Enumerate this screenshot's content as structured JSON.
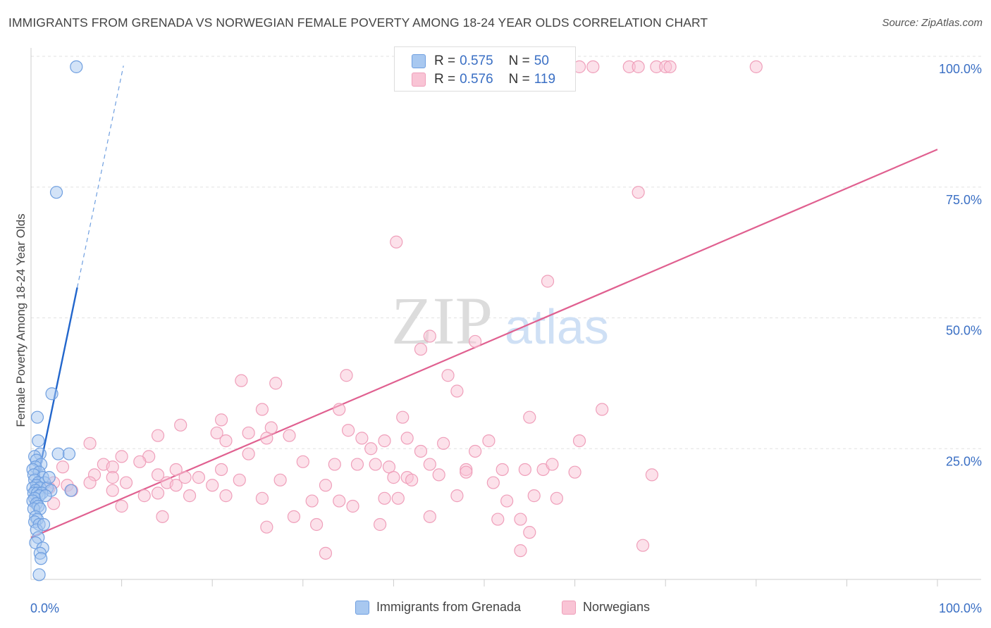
{
  "header": {
    "title": "IMMIGRANTS FROM GRENADA VS NORWEGIAN FEMALE POVERTY AMONG 18-24 YEAR OLDS CORRELATION CHART",
    "source": "Source: ZipAtlas.com"
  },
  "watermark": {
    "zip": "ZIP",
    "atlas": "atlas"
  },
  "stats_legend": {
    "rows": [
      {
        "r_label": "R =",
        "r_value": "0.575",
        "n_label": "N =",
        "n_value": "50",
        "color": "#6f9fe0"
      },
      {
        "r_label": "R =",
        "r_value": "0.576",
        "n_label": "N =",
        "n_value": "119",
        "color": "#f0a0bc"
      }
    ]
  },
  "colors": {
    "series_a_fill": "#a8c8f0",
    "series_a_stroke": "#6f9fe0",
    "series_a_line": "#2266cc",
    "series_b_fill": "#f9c4d5",
    "series_b_stroke": "#ef9fba",
    "series_b_line": "#e06090",
    "tick_label": "#3a6fc4"
  },
  "chart_data": {
    "type": "scatter",
    "title": "IMMIGRANTS FROM GRENADA VS NORWEGIAN FEMALE POVERTY AMONG 18-24 YEAR OLDS CORRELATION CHART",
    "xlabel": "",
    "ylabel": "Female Poverty Among 18-24 Year Olds",
    "xlim": [
      0,
      100
    ],
    "ylim": [
      0,
      100
    ],
    "x_tick_labels": [
      "0.0%",
      "100.0%"
    ],
    "y_ticks": [
      25,
      50,
      75,
      100
    ],
    "y_tick_labels": [
      "25.0%",
      "50.0%",
      "75.0%",
      "100.0%"
    ],
    "grid": true,
    "legend_placement": "bottom",
    "series": [
      {
        "name": "Immigrants from Grenada",
        "color": "#6f9fe0",
        "r": "0.575",
        "n": "50",
        "trend": {
          "x": [
            0.1,
            5.1
          ],
          "y": [
            14.0,
            55.8
          ],
          "dashed_to": [
            10.2,
            98.2
          ]
        },
        "points": [
          [
            5.0,
            98.0
          ],
          [
            2.8,
            74.0
          ],
          [
            2.3,
            35.5
          ],
          [
            0.7,
            31.0
          ],
          [
            0.8,
            26.5
          ],
          [
            1.0,
            24.0
          ],
          [
            0.4,
            23.5
          ],
          [
            0.6,
            22.8
          ],
          [
            1.1,
            22.0
          ],
          [
            0.5,
            21.5
          ],
          [
            0.2,
            21.0
          ],
          [
            0.9,
            20.5
          ],
          [
            0.3,
            20.0
          ],
          [
            1.3,
            19.5
          ],
          [
            0.4,
            19.0
          ],
          [
            0.8,
            18.5
          ],
          [
            1.5,
            18.5
          ],
          [
            0.6,
            18.0
          ],
          [
            0.2,
            17.5
          ],
          [
            1.0,
            17.5
          ],
          [
            0.5,
            17.0
          ],
          [
            1.8,
            17.5
          ],
          [
            2.2,
            17.0
          ],
          [
            0.3,
            16.5
          ],
          [
            0.7,
            16.5
          ],
          [
            1.2,
            16.5
          ],
          [
            0.9,
            16.0
          ],
          [
            0.4,
            15.5
          ],
          [
            1.6,
            16.0
          ],
          [
            0.2,
            15.0
          ],
          [
            0.6,
            14.5
          ],
          [
            0.8,
            14.0
          ],
          [
            0.3,
            13.5
          ],
          [
            1.0,
            13.5
          ],
          [
            0.5,
            12.0
          ],
          [
            0.7,
            11.5
          ],
          [
            0.4,
            11.0
          ],
          [
            0.9,
            10.5
          ],
          [
            0.6,
            9.5
          ],
          [
            1.4,
            10.5
          ],
          [
            0.8,
            8.0
          ],
          [
            0.5,
            7.0
          ],
          [
            1.3,
            6.0
          ],
          [
            1.0,
            5.0
          ],
          [
            1.1,
            4.0
          ],
          [
            0.9,
            0.9
          ],
          [
            3.0,
            24.0
          ],
          [
            4.2,
            24.0
          ],
          [
            2.0,
            19.5
          ],
          [
            4.4,
            17.0
          ]
        ]
      },
      {
        "name": "Norwegians",
        "color": "#ef9fba",
        "r": "0.576",
        "n": "119",
        "trend": {
          "x": [
            0,
            100
          ],
          "y": [
            8.0,
            82.2
          ]
        },
        "points": [
          [
            53.0,
            98.0
          ],
          [
            56.0,
            98.0
          ],
          [
            57.0,
            98.0
          ],
          [
            60.5,
            98.0
          ],
          [
            62.0,
            98.0
          ],
          [
            66.0,
            98.0
          ],
          [
            67.0,
            98.0
          ],
          [
            69.0,
            98.0
          ],
          [
            70.0,
            98.0
          ],
          [
            70.5,
            98.0
          ],
          [
            80.0,
            98.0
          ],
          [
            67.0,
            74.0
          ],
          [
            40.3,
            64.5
          ],
          [
            57.0,
            57.0
          ],
          [
            44.0,
            46.5
          ],
          [
            43.0,
            44.0
          ],
          [
            49.0,
            45.5
          ],
          [
            34.8,
            39.0
          ],
          [
            46.0,
            39.0
          ],
          [
            23.2,
            38.0
          ],
          [
            27.0,
            37.5
          ],
          [
            47.0,
            36.0
          ],
          [
            25.5,
            32.5
          ],
          [
            34.0,
            32.5
          ],
          [
            63.0,
            32.5
          ],
          [
            21.0,
            30.5
          ],
          [
            41.0,
            31.0
          ],
          [
            55.0,
            31.0
          ],
          [
            16.5,
            29.5
          ],
          [
            26.5,
            29.0
          ],
          [
            24.0,
            28.0
          ],
          [
            35.0,
            28.5
          ],
          [
            20.5,
            28.0
          ],
          [
            14.0,
            27.5
          ],
          [
            36.5,
            27.0
          ],
          [
            39.0,
            26.5
          ],
          [
            41.5,
            27.0
          ],
          [
            26.0,
            27.0
          ],
          [
            28.5,
            27.5
          ],
          [
            21.5,
            26.5
          ],
          [
            45.5,
            26.0
          ],
          [
            50.5,
            26.5
          ],
          [
            60.5,
            26.5
          ],
          [
            37.5,
            25.0
          ],
          [
            43.0,
            24.5
          ],
          [
            49.0,
            24.5
          ],
          [
            6.5,
            26.0
          ],
          [
            10.0,
            23.5
          ],
          [
            13.0,
            23.5
          ],
          [
            24.0,
            24.0
          ],
          [
            30.0,
            22.5
          ],
          [
            44.0,
            22.0
          ],
          [
            33.5,
            22.0
          ],
          [
            36.0,
            22.0
          ],
          [
            12.0,
            22.5
          ],
          [
            8.0,
            22.0
          ],
          [
            9.0,
            21.5
          ],
          [
            3.5,
            21.5
          ],
          [
            16.0,
            21.0
          ],
          [
            21.0,
            21.0
          ],
          [
            38.0,
            22.0
          ],
          [
            39.5,
            21.5
          ],
          [
            48.0,
            21.0
          ],
          [
            52.0,
            21.0
          ],
          [
            54.5,
            21.0
          ],
          [
            56.5,
            21.0
          ],
          [
            57.5,
            22.0
          ],
          [
            60.0,
            20.5
          ],
          [
            68.5,
            20.0
          ],
          [
            7.0,
            20.0
          ],
          [
            9.0,
            19.5
          ],
          [
            14.0,
            20.0
          ],
          [
            17.0,
            19.5
          ],
          [
            18.5,
            19.5
          ],
          [
            23.0,
            19.0
          ],
          [
            27.5,
            19.0
          ],
          [
            40.0,
            19.5
          ],
          [
            41.5,
            19.5
          ],
          [
            45.0,
            20.0
          ],
          [
            48.0,
            20.5
          ],
          [
            2.5,
            18.5
          ],
          [
            4.0,
            18.0
          ],
          [
            6.5,
            18.5
          ],
          [
            10.5,
            18.5
          ],
          [
            15.0,
            18.5
          ],
          [
            16.0,
            18.0
          ],
          [
            20.0,
            18.0
          ],
          [
            32.5,
            18.0
          ],
          [
            42.0,
            19.0
          ],
          [
            51.0,
            18.5
          ],
          [
            2.0,
            17.5
          ],
          [
            4.5,
            17.0
          ],
          [
            9.0,
            17.0
          ],
          [
            12.5,
            16.0
          ],
          [
            14.0,
            16.5
          ],
          [
            17.5,
            16.0
          ],
          [
            21.5,
            16.0
          ],
          [
            25.5,
            15.5
          ],
          [
            34.0,
            15.0
          ],
          [
            35.5,
            14.0
          ],
          [
            39.0,
            15.5
          ],
          [
            40.5,
            15.5
          ],
          [
            47.0,
            16.0
          ],
          [
            52.5,
            15.0
          ],
          [
            55.5,
            16.0
          ],
          [
            58.0,
            15.5
          ],
          [
            2.5,
            14.5
          ],
          [
            10.0,
            14.0
          ],
          [
            14.5,
            12.0
          ],
          [
            29.0,
            12.0
          ],
          [
            31.0,
            15.0
          ],
          [
            44.0,
            12.0
          ],
          [
            51.5,
            11.5
          ],
          [
            54.0,
            11.5
          ],
          [
            55.0,
            9.0
          ],
          [
            26.0,
            10.0
          ],
          [
            31.5,
            10.5
          ],
          [
            38.5,
            10.5
          ],
          [
            54.0,
            5.5
          ],
          [
            32.5,
            5.0
          ],
          [
            67.5,
            6.5
          ]
        ]
      }
    ]
  }
}
